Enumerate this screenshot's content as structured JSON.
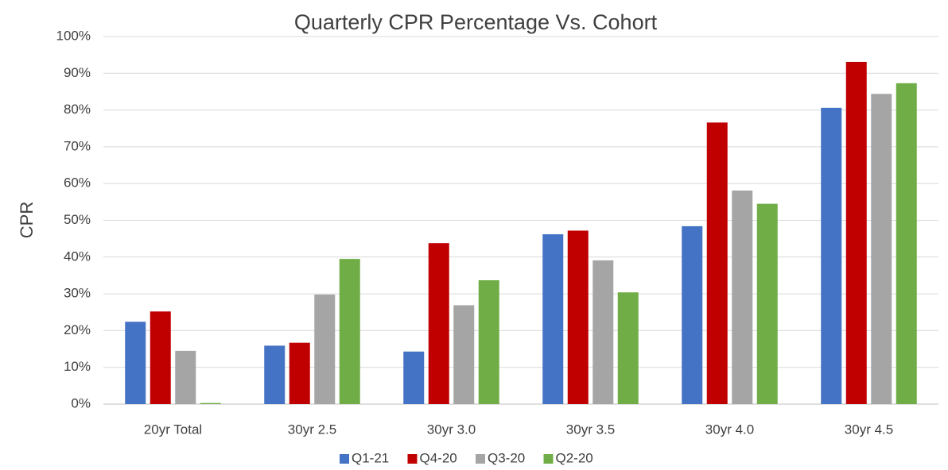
{
  "chart_data": {
    "type": "bar",
    "title": "Quarterly CPR Percentage Vs. Cohort",
    "y_label": "CPR",
    "categories": [
      "20yr Total",
      "30yr 2.5",
      "30yr 3.0",
      "30yr 3.5",
      "30yr 4.0",
      "30yr 4.5"
    ],
    "series": [
      {
        "name": "Q1-21",
        "color": "#4472c4",
        "values": [
          22.4,
          15.9,
          14.3,
          46.2,
          48.4,
          80.6
        ]
      },
      {
        "name": "Q4-20",
        "color": "#c00000",
        "values": [
          25.2,
          16.7,
          43.8,
          47.2,
          76.6,
          93.1
        ]
      },
      {
        "name": "Q3-20",
        "color": "#a5a5a5",
        "values": [
          14.5,
          29.8,
          26.9,
          39.1,
          58.1,
          84.4
        ]
      },
      {
        "name": "Q2-20",
        "color": "#70ad47",
        "values": [
          0.3,
          39.5,
          33.7,
          30.4,
          54.5,
          87.3
        ]
      }
    ],
    "ylim": [
      0,
      100
    ],
    "yticks": [
      {
        "value": 0,
        "label": "0%"
      },
      {
        "value": 10,
        "label": "10%"
      },
      {
        "value": 20,
        "label": "20%"
      },
      {
        "value": 30,
        "label": "30%"
      },
      {
        "value": 40,
        "label": "40%"
      },
      {
        "value": 50,
        "label": "50%"
      },
      {
        "value": 60,
        "label": "60%"
      },
      {
        "value": 70,
        "label": "70%"
      },
      {
        "value": 80,
        "label": "80%"
      },
      {
        "value": 90,
        "label": "90%"
      },
      {
        "value": 100,
        "label": "100%"
      }
    ],
    "grid": true,
    "legend": "bottom"
  }
}
